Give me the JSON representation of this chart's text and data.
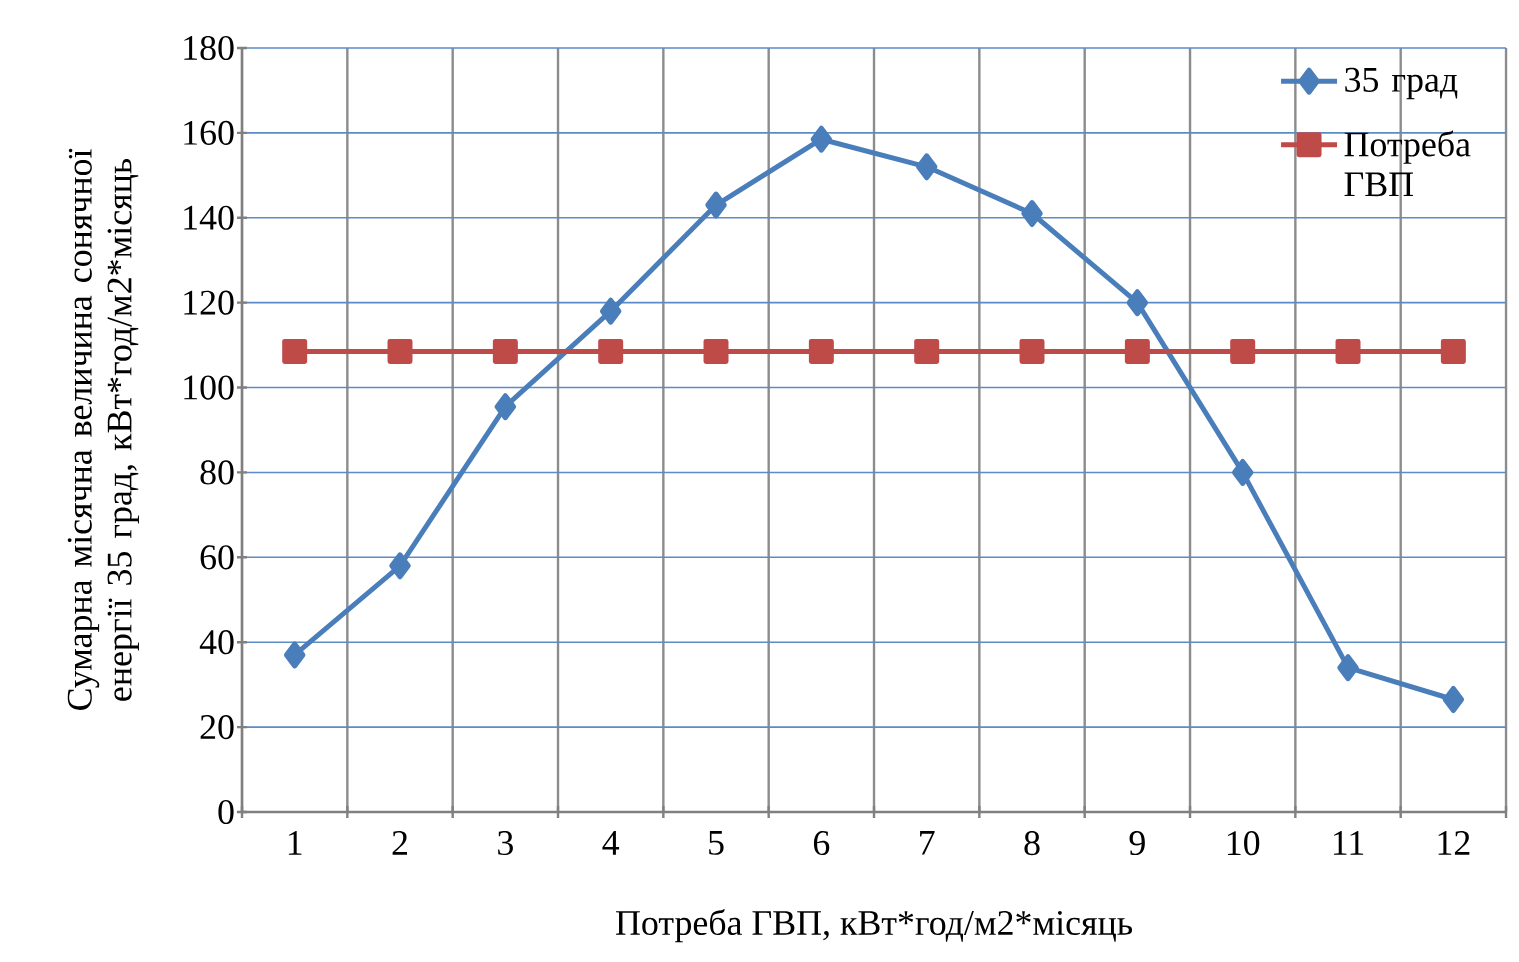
{
  "chart_data": {
    "type": "line",
    "xlabel": "Потреба ГВП, кВт*год/м2*місяць",
    "ylabel": "Сумарна  місячна величина сонячної енергії 35 град, кВт*год/м2*місяць",
    "categories": [
      "1",
      "2",
      "3",
      "4",
      "5",
      "6",
      "7",
      "8",
      "9",
      "10",
      "11",
      "12"
    ],
    "series": [
      {
        "name": "35 град",
        "color": "#4a7ebb",
        "marker": "diamond",
        "values": [
          37,
          58,
          95.5,
          118,
          143,
          158.5,
          152,
          141,
          120,
          80,
          34,
          26.5
        ]
      },
      {
        "name": "Потреба ГВП",
        "color": "#be4b48",
        "marker": "square",
        "values": [
          108.5,
          108.5,
          108.5,
          108.5,
          108.5,
          108.5,
          108.5,
          108.5,
          108.5,
          108.5,
          108.5,
          108.5
        ]
      }
    ],
    "ylim": [
      0,
      180
    ],
    "yticks": [
      0,
      20,
      40,
      60,
      80,
      100,
      120,
      140,
      160,
      180
    ],
    "grid": true,
    "legend": "top right",
    "line_style": "solid"
  }
}
